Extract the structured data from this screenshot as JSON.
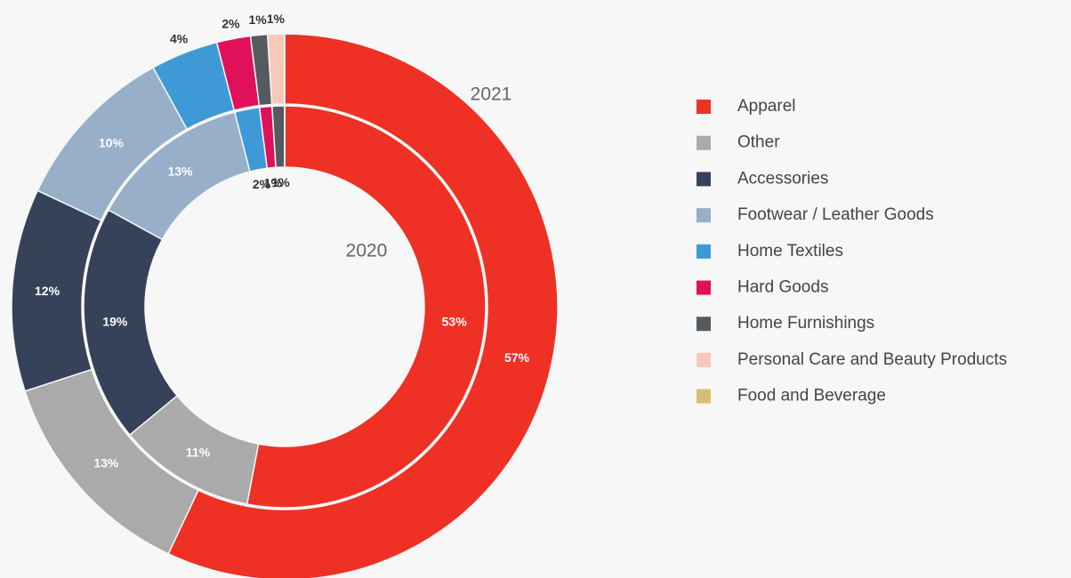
{
  "chart_data": {
    "type": "donut",
    "categories": [
      "Apparel",
      "Other",
      "Accessories",
      "Footwear / Leather Goods",
      "Home Textiles",
      "Hard Goods",
      "Home Furnishings",
      "Personal Care and Beauty Products",
      "Food and Beverage"
    ],
    "colors": [
      "#ee3124",
      "#aaaaaa",
      "#36425a",
      "#97afc9",
      "#3d9ad6",
      "#e0105a",
      "#555a5e",
      "#f8c8b8",
      "#d4c170"
    ],
    "series": [
      {
        "name": "2021",
        "values": [
          57,
          13,
          12,
          10,
          4,
          2,
          1,
          1,
          0
        ],
        "value_labels": [
          "57%",
          "13%",
          "12%",
          "10%",
          "4%",
          "2%",
          "1%",
          "1%",
          null
        ]
      },
      {
        "name": "2020",
        "values": [
          53,
          11,
          19,
          13,
          2,
          1,
          1,
          0,
          0
        ],
        "value_labels": [
          "53%",
          "11%",
          "19%",
          "13%",
          "2%",
          "1%",
          "1%",
          null,
          null
        ]
      }
    ],
    "legend": "right"
  }
}
